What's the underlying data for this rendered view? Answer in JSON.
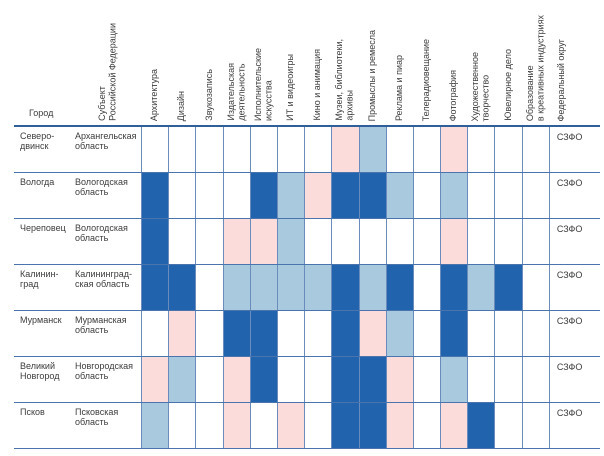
{
  "chart_data": {
    "type": "heatmap",
    "city_header": "Город",
    "region_header": "Субъект\nРоссийской Федерации",
    "district_header": "Федеральный округ",
    "columns": [
      "Архитектура",
      "Дизайн",
      "Звукозапись",
      "Издательская\nдеятельность",
      "Исполнительские\nискусства",
      "ИТ и видеоигры",
      "Кино и анимация",
      "Музеи, библиотеки,\nархивы",
      "Промыслы и ремесла",
      "Реклама и пиар",
      "Телерадиовещание",
      "Фотография",
      "Художественное\nтворчество",
      "Ювелирное дело",
      "Образование\nв креативных индустриях"
    ],
    "cell_colors": {
      "d": "#2263ae",
      "l": "#a9cade",
      "p": "#fbdcdb",
      "n": "#ffffff"
    },
    "grid_line_color": "#4a74ad",
    "header_line_color": "#2e5f9b",
    "rows": [
      {
        "city": "Северо-\nдвинск",
        "region": "Архангельская\nобласть",
        "district": "СЗФО",
        "cells": [
          "n",
          "n",
          "n",
          "n",
          "n",
          "n",
          "n",
          "p",
          "l",
          "n",
          "n",
          "p",
          "n",
          "n",
          "n"
        ]
      },
      {
        "city": "Вологда",
        "region": "Вологодская\nобласть",
        "district": "СЗФО",
        "cells": [
          "d",
          "n",
          "n",
          "n",
          "d",
          "l",
          "p",
          "d",
          "d",
          "l",
          "n",
          "l",
          "n",
          "n",
          "n"
        ]
      },
      {
        "city": "Череповец",
        "region": "Вологодская\nобласть",
        "district": "СЗФО",
        "cells": [
          "d",
          "n",
          "n",
          "p",
          "p",
          "l",
          "n",
          "n",
          "n",
          "n",
          "n",
          "p",
          "n",
          "n",
          "n"
        ]
      },
      {
        "city": "Калинин-\nград",
        "region": "Калининград-\nская область",
        "district": "СЗФО",
        "cells": [
          "d",
          "d",
          "n",
          "l",
          "l",
          "l",
          "l",
          "d",
          "l",
          "d",
          "n",
          "d",
          "l",
          "d",
          "n"
        ]
      },
      {
        "city": "Мурманск",
        "region": "Мурманская\nобласть",
        "district": "СЗФО",
        "cells": [
          "n",
          "p",
          "n",
          "d",
          "d",
          "n",
          "n",
          "d",
          "p",
          "l",
          "n",
          "d",
          "n",
          "n",
          "n"
        ]
      },
      {
        "city": "Великий\nНовгород",
        "region": "Новгородская\nобласть",
        "district": "СЗФО",
        "cells": [
          "p",
          "l",
          "n",
          "p",
          "d",
          "n",
          "n",
          "d",
          "d",
          "p",
          "n",
          "l",
          "n",
          "n",
          "n"
        ]
      },
      {
        "city": "Псков",
        "region": "Псковская\nобласть",
        "district": "СЗФО",
        "cells": [
          "l",
          "n",
          "n",
          "p",
          "n",
          "p",
          "n",
          "d",
          "d",
          "p",
          "n",
          "p",
          "d",
          "n",
          "n"
        ]
      }
    ]
  }
}
